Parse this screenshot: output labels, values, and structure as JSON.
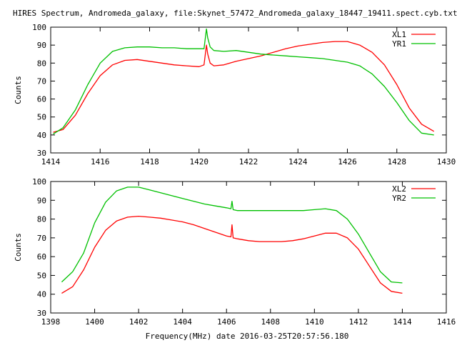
{
  "title": "HIRES Spectrum, Andromeda_galaxy, file:Skynet_57472_Andromeda_galaxy_18447_19411.spect.cyb.txt",
  "xlabel": "Frequency(MHz) date 2016-03-25T20:57:56.180",
  "colors": {
    "red": "#ff0000",
    "green": "#00c000"
  },
  "chart_data": [
    {
      "type": "line",
      "title": "",
      "xlabel": "",
      "ylabel": "Counts",
      "xlim": [
        1414,
        1430
      ],
      "ylim": [
        30,
        100
      ],
      "xticks": [
        1414,
        1416,
        1418,
        1420,
        1422,
        1424,
        1426,
        1428,
        1430
      ],
      "yticks": [
        30,
        40,
        50,
        60,
        70,
        80,
        90,
        100
      ],
      "grid": false,
      "legend": "top-right",
      "series": [
        {
          "name": "XL1",
          "color": "#ff0000",
          "x": [
            1414.1,
            1414.5,
            1415.0,
            1415.5,
            1416.0,
            1416.5,
            1417.0,
            1417.5,
            1418.0,
            1418.5,
            1419.0,
            1419.5,
            1420.0,
            1420.2,
            1420.3,
            1420.35,
            1420.45,
            1420.6,
            1421.0,
            1421.5,
            1422.0,
            1422.5,
            1423.0,
            1423.5,
            1424.0,
            1424.5,
            1425.0,
            1425.5,
            1426.0,
            1426.5,
            1427.0,
            1427.5,
            1428.0,
            1428.5,
            1429.0,
            1429.5
          ],
          "values": [
            41.5,
            43,
            51,
            63,
            73,
            79,
            81.5,
            82,
            81,
            80,
            79,
            78.5,
            78,
            79,
            90,
            85,
            80,
            78.5,
            79,
            81,
            82.5,
            84,
            86,
            88,
            89.5,
            90.5,
            91.5,
            92,
            92,
            90,
            86,
            79,
            68,
            55,
            46,
            42
          ]
        },
        {
          "name": "YR1",
          "color": "#00c000",
          "x": [
            1414.1,
            1414.5,
            1415.0,
            1415.5,
            1416.0,
            1416.5,
            1417.0,
            1417.5,
            1418.0,
            1418.5,
            1419.0,
            1419.5,
            1420.0,
            1420.2,
            1420.3,
            1420.35,
            1420.45,
            1420.6,
            1421.0,
            1421.5,
            1422.0,
            1422.5,
            1423.0,
            1423.5,
            1424.0,
            1424.5,
            1425.0,
            1425.5,
            1426.0,
            1426.5,
            1427.0,
            1427.5,
            1428.0,
            1428.5,
            1429.0,
            1429.5
          ],
          "values": [
            40.5,
            44,
            54,
            68,
            80,
            86.5,
            88.5,
            89,
            89,
            88.5,
            88.5,
            88,
            88,
            88,
            99,
            94,
            89,
            87,
            86.5,
            87,
            86,
            85,
            84.5,
            84,
            83.5,
            83,
            82.5,
            81.5,
            80.5,
            78.5,
            74,
            67,
            58,
            48,
            41,
            40
          ]
        }
      ]
    },
    {
      "type": "line",
      "title": "",
      "xlabel": "Frequency(MHz) date 2016-03-25T20:57:56.180",
      "ylabel": "Counts",
      "xlim": [
        1398,
        1416
      ],
      "ylim": [
        30,
        100
      ],
      "xticks": [
        1398,
        1400,
        1402,
        1404,
        1406,
        1408,
        1410,
        1412,
        1414,
        1416
      ],
      "yticks": [
        30,
        40,
        50,
        60,
        70,
        80,
        90,
        100
      ],
      "grid": false,
      "legend": "top-right",
      "series": [
        {
          "name": "XL2",
          "color": "#ff0000",
          "x": [
            1398.5,
            1399.0,
            1399.5,
            1400.0,
            1400.5,
            1401.0,
            1401.5,
            1402.0,
            1402.5,
            1403.0,
            1403.5,
            1404.0,
            1404.5,
            1405.0,
            1405.5,
            1406.0,
            1406.2,
            1406.25,
            1406.3,
            1406.5,
            1407.0,
            1407.5,
            1408.0,
            1408.5,
            1409.0,
            1409.5,
            1410.0,
            1410.5,
            1411.0,
            1411.5,
            1412.0,
            1412.5,
            1413.0,
            1413.5,
            1414.0
          ],
          "values": [
            40.5,
            44,
            53,
            65,
            74,
            79,
            81,
            81.5,
            81,
            80.5,
            79.5,
            78.5,
            77,
            75,
            73,
            71,
            70.5,
            77,
            70,
            69.5,
            68.5,
            68,
            68,
            68,
            68.5,
            69.5,
            71,
            72.5,
            72.5,
            70,
            64,
            55,
            46,
            41.5,
            40.5
          ]
        },
        {
          "name": "YR2",
          "color": "#00c000",
          "x": [
            1398.5,
            1399.0,
            1399.5,
            1400.0,
            1400.5,
            1401.0,
            1401.5,
            1402.0,
            1402.5,
            1403.0,
            1403.5,
            1404.0,
            1404.5,
            1405.0,
            1405.5,
            1406.0,
            1406.2,
            1406.25,
            1406.3,
            1406.5,
            1407.0,
            1407.5,
            1408.0,
            1408.5,
            1409.0,
            1409.5,
            1410.0,
            1410.5,
            1411.0,
            1411.5,
            1412.0,
            1412.5,
            1413.0,
            1413.5,
            1414.0
          ],
          "values": [
            46.5,
            52,
            62,
            78,
            89,
            95,
            97,
            97,
            95.5,
            94,
            92.5,
            91,
            89.5,
            88,
            87,
            86,
            85.5,
            89.5,
            85,
            84.5,
            84.5,
            84.5,
            84.5,
            84.5,
            84.5,
            84.5,
            85,
            85.5,
            84.5,
            80,
            72,
            62,
            52,
            46.5,
            46
          ]
        }
      ]
    }
  ]
}
